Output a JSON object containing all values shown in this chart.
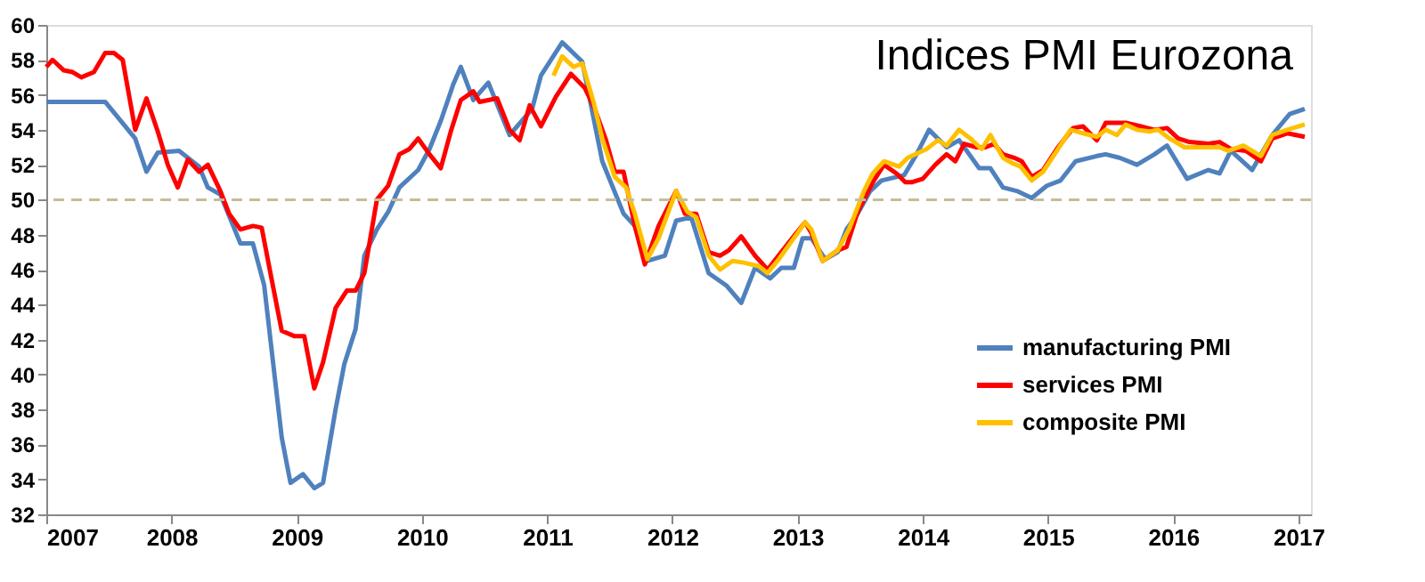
{
  "chart_data": {
    "type": "line",
    "title": "Indices PMI Eurozona",
    "xlim": [
      2007,
      2017.1
    ],
    "xticks": [
      2007,
      2008,
      2009,
      2010,
      2011,
      2012,
      2013,
      2014,
      2015,
      2016,
      2017
    ],
    "ylim": [
      32,
      60
    ],
    "yticks": [
      32,
      34,
      36,
      38,
      40,
      42,
      44,
      46,
      48,
      50,
      52,
      54,
      56,
      58,
      60
    ],
    "grid": false,
    "legend": "bottom right",
    "line_style": "solid",
    "marker": "none",
    "ref_lines": [
      {
        "axis": "y",
        "value": 50,
        "color": "#c4bd97",
        "line_style": "dashed"
      }
    ],
    "series": [
      {
        "name": "manufacturing PMI",
        "color": "#4f81bd",
        "x": [
          2007,
          2007.47,
          2007.71,
          2007.8,
          2007.89,
          2008.06,
          2008.22,
          2008.29,
          2008.39,
          2008.55,
          2008.65,
          2008.74,
          2008.88,
          2008.95,
          2009.05,
          2009.14,
          2009.21,
          2009.31,
          2009.38,
          2009.47,
          2009.54,
          2009.64,
          2009.73,
          2009.82,
          2009.97,
          2010.06,
          2010.15,
          2010.25,
          2010.31,
          2010.41,
          2010.53,
          2010.7,
          2010.88,
          2010.95,
          2011.12,
          2011.28,
          2011.44,
          2011.61,
          2011.7,
          2011.8,
          2011.94,
          2012.03,
          2012.15,
          2012.29,
          2012.43,
          2012.55,
          2012.66,
          2012.78,
          2012.87,
          2012.97,
          2013.04,
          2013.11,
          2013.22,
          2013.32,
          2013.39,
          2013.48,
          2013.58,
          2013.67,
          2013.85,
          2013.95,
          2014.05,
          2014.19,
          2014.29,
          2014.45,
          2014.54,
          2014.64,
          2014.75,
          2014.87,
          2014.99,
          2015.1,
          2015.22,
          2015.39,
          2015.46,
          2015.57,
          2015.71,
          2015.85,
          2015.95,
          2016.11,
          2016.28,
          2016.37,
          2016.46,
          2016.63,
          2016.79,
          2016.93,
          2017.05
        ],
        "values": [
          55.6,
          55.6,
          53.5,
          51.6,
          52.7,
          52.8,
          51.9,
          50.7,
          50.3,
          47.5,
          47.5,
          45.1,
          36.4,
          33.8,
          34.3,
          33.5,
          33.8,
          38.0,
          40.6,
          42.6,
          46.8,
          48.3,
          49.3,
          50.7,
          51.7,
          52.9,
          54.5,
          56.6,
          57.6,
          55.7,
          56.7,
          53.7,
          55.2,
          57.1,
          59.0,
          57.9,
          52.2,
          49.2,
          48.5,
          46.5,
          46.8,
          48.8,
          49.0,
          45.8,
          45.1,
          44.1,
          46.1,
          45.5,
          46.1,
          46.1,
          47.8,
          47.8,
          46.6,
          47.0,
          48.3,
          49.2,
          50.5,
          51.1,
          51.4,
          52.6,
          54.0,
          53.0,
          53.4,
          51.8,
          51.8,
          50.7,
          50.5,
          50.1,
          50.8,
          51.1,
          52.2,
          52.5,
          52.6,
          52.4,
          52.0,
          52.6,
          53.1,
          51.2,
          51.7,
          51.5,
          52.8,
          51.7,
          53.7,
          54.9,
          55.2
        ]
      },
      {
        "name": "services PMI",
        "color": "#ff0000",
        "x": [
          2007,
          2007.05,
          2007.14,
          2007.21,
          2007.28,
          2007.38,
          2007.47,
          2007.54,
          2007.61,
          2007.71,
          2007.8,
          2007.89,
          2007.97,
          2008.05,
          2008.13,
          2008.22,
          2008.29,
          2008.39,
          2008.46,
          2008.55,
          2008.65,
          2008.72,
          2008.79,
          2008.88,
          2008.98,
          2009.06,
          2009.14,
          2009.21,
          2009.31,
          2009.4,
          2009.47,
          2009.54,
          2009.64,
          2009.73,
          2009.82,
          2009.9,
          2009.97,
          2010.06,
          2010.15,
          2010.23,
          2010.31,
          2010.41,
          2010.46,
          2010.6,
          2010.7,
          2010.78,
          2010.86,
          2010.95,
          2011.07,
          2011.19,
          2011.3,
          2011.38,
          2011.47,
          2011.54,
          2011.61,
          2011.7,
          2011.78,
          2011.89,
          2012.03,
          2012.1,
          2012.19,
          2012.29,
          2012.38,
          2012.45,
          2012.55,
          2012.66,
          2012.76,
          2012.87,
          2012.99,
          2013.06,
          2013.11,
          2013.2,
          2013.32,
          2013.39,
          2013.48,
          2013.6,
          2013.69,
          2013.79,
          2013.86,
          2013.91,
          2014.0,
          2014.1,
          2014.19,
          2014.26,
          2014.33,
          2014.43,
          2014.5,
          2014.57,
          2014.64,
          2014.73,
          2014.79,
          2014.87,
          2014.96,
          2015.08,
          2015.2,
          2015.28,
          2015.39,
          2015.46,
          2015.55,
          2015.62,
          2015.74,
          2015.85,
          2015.95,
          2016.04,
          2016.13,
          2016.28,
          2016.37,
          2016.46,
          2016.58,
          2016.7,
          2016.79,
          2016.91,
          2017.05
        ],
        "values": [
          57.6,
          58.0,
          57.4,
          57.3,
          57.0,
          57.3,
          58.4,
          58.4,
          58.0,
          54.0,
          55.8,
          53.9,
          52.0,
          50.7,
          52.3,
          51.6,
          52.0,
          50.5,
          49.2,
          48.3,
          48.5,
          48.4,
          45.8,
          42.5,
          42.2,
          42.2,
          39.2,
          40.7,
          43.8,
          44.8,
          44.8,
          45.8,
          50.0,
          50.8,
          52.6,
          52.9,
          53.5,
          52.6,
          51.8,
          53.9,
          55.7,
          56.2,
          55.6,
          55.8,
          54.0,
          53.4,
          55.4,
          54.2,
          55.9,
          57.2,
          56.4,
          55.2,
          53.4,
          51.6,
          51.6,
          48.5,
          46.3,
          48.5,
          50.5,
          49.2,
          49.2,
          47.0,
          46.8,
          47.1,
          47.9,
          46.8,
          46.0,
          47.0,
          48.1,
          48.7,
          48.1,
          46.5,
          47.1,
          47.3,
          49.3,
          51.0,
          52.0,
          51.5,
          51.0,
          51.0,
          51.2,
          52.0,
          52.6,
          52.2,
          53.2,
          53.0,
          53.0,
          53.2,
          52.6,
          52.4,
          52.2,
          51.3,
          51.7,
          53.0,
          54.1,
          54.2,
          53.4,
          54.4,
          54.4,
          54.4,
          54.2,
          54.0,
          54.1,
          53.5,
          53.3,
          53.2,
          53.3,
          52.9,
          52.8,
          52.2,
          53.5,
          53.8,
          53.6
        ]
      },
      {
        "name": "composite PMI",
        "color": "#ffc000",
        "x": [
          2011.05,
          2011.12,
          2011.21,
          2011.28,
          2011.37,
          2011.44,
          2011.54,
          2011.63,
          2011.7,
          2011.8,
          2011.89,
          2012.03,
          2012.12,
          2012.19,
          2012.29,
          2012.38,
          2012.48,
          2012.57,
          2012.69,
          2012.76,
          2012.85,
          2012.97,
          2013.06,
          2013.11,
          2013.2,
          2013.32,
          2013.41,
          2013.53,
          2013.6,
          2013.69,
          2013.81,
          2013.88,
          2014.03,
          2014.12,
          2014.19,
          2014.29,
          2014.38,
          2014.47,
          2014.54,
          2014.64,
          2014.71,
          2014.78,
          2014.87,
          2014.96,
          2015.08,
          2015.18,
          2015.28,
          2015.39,
          2015.46,
          2015.55,
          2015.62,
          2015.71,
          2015.81,
          2015.88,
          2015.97,
          2016.09,
          2016.23,
          2016.37,
          2016.44,
          2016.56,
          2016.7,
          2016.79,
          2016.91,
          2017.05
        ],
        "values": [
          57.1,
          58.2,
          57.6,
          57.8,
          55.6,
          53.5,
          51.3,
          50.7,
          49.2,
          46.6,
          47.8,
          50.5,
          49.3,
          49.0,
          46.8,
          46.0,
          46.5,
          46.4,
          46.2,
          45.8,
          46.6,
          47.8,
          48.7,
          48.3,
          46.5,
          47.1,
          48.3,
          50.5,
          51.5,
          52.2,
          51.9,
          52.4,
          52.9,
          53.4,
          53.1,
          54.0,
          53.5,
          52.9,
          53.7,
          52.4,
          52.1,
          51.9,
          51.1,
          51.6,
          52.9,
          54.0,
          53.8,
          53.6,
          54.0,
          53.7,
          54.3,
          54.0,
          53.9,
          54.0,
          53.5,
          53.0,
          53.0,
          53.0,
          52.8,
          53.1,
          52.5,
          53.7,
          54.0,
          54.3
        ]
      }
    ]
  }
}
